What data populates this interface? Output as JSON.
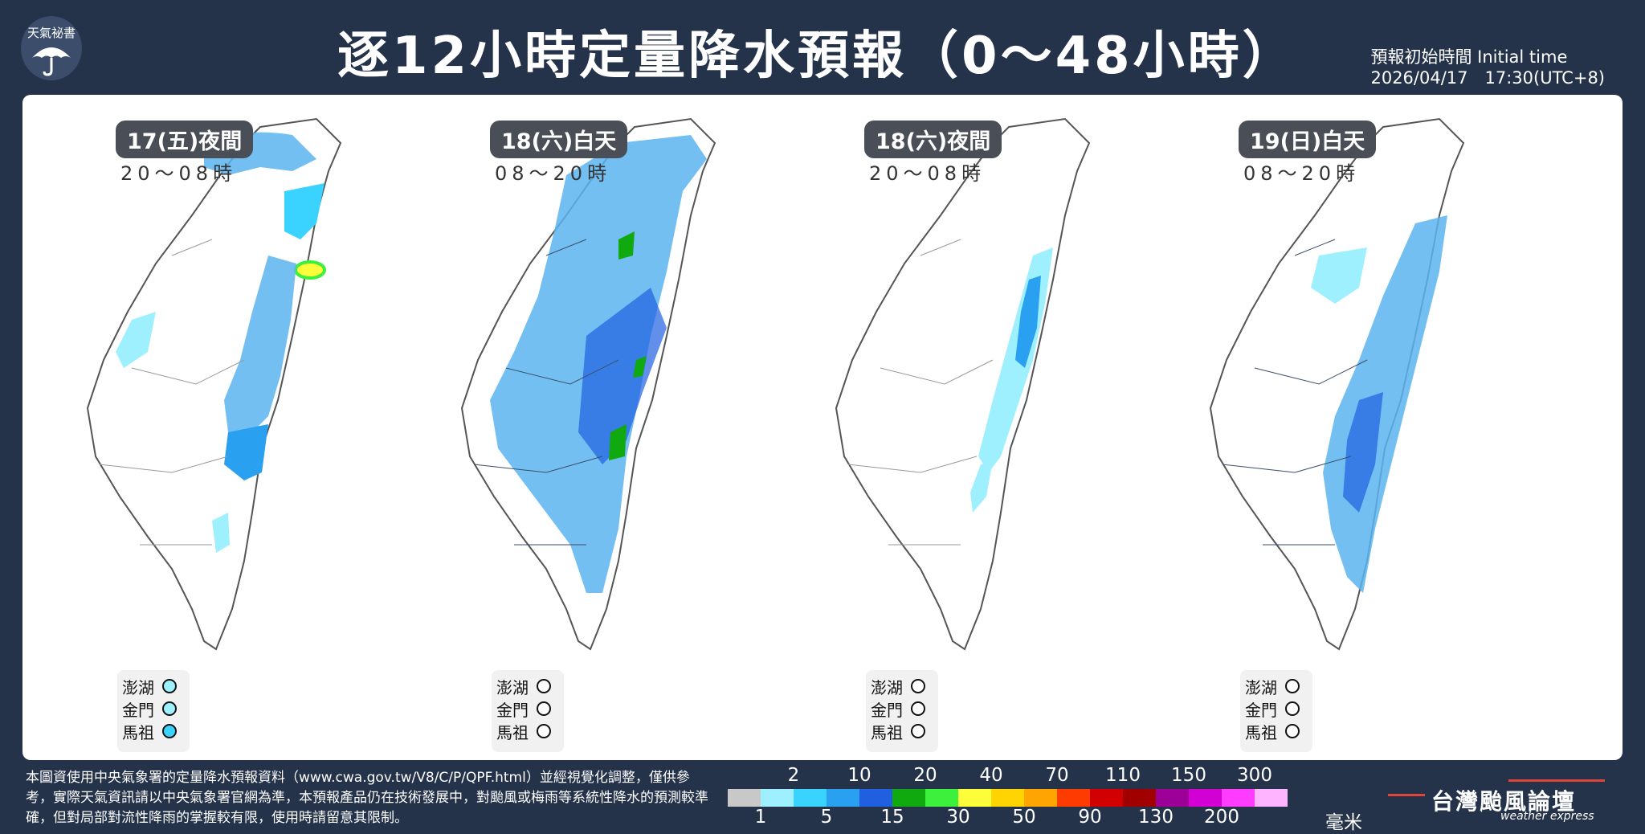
{
  "header": {
    "logo_text": "天氣祕書",
    "title": "逐12小時定量降水預報（0～48小時）",
    "init_label": "預報初始時間 Initial time",
    "init_value": "2026/04/17　17:30(UTC+8)"
  },
  "panels": [
    {
      "day": "17(五)夜間",
      "hours": "20～08時",
      "islands": [
        {
          "name": "澎湖",
          "level": "light"
        },
        {
          "name": "金門",
          "level": "light"
        },
        {
          "name": "馬祖",
          "level": "medium"
        }
      ]
    },
    {
      "day": "18(六)白天",
      "hours": "08～20時",
      "islands": [
        {
          "name": "澎湖",
          "level": "none"
        },
        {
          "name": "金門",
          "level": "none"
        },
        {
          "name": "馬祖",
          "level": "none"
        }
      ]
    },
    {
      "day": "18(六)夜間",
      "hours": "20～08時",
      "islands": [
        {
          "name": "澎湖",
          "level": "none"
        },
        {
          "name": "金門",
          "level": "none"
        },
        {
          "name": "馬祖",
          "level": "none"
        }
      ]
    },
    {
      "day": "19(日)白天",
      "hours": "08～20時",
      "islands": [
        {
          "name": "澎湖",
          "level": "none"
        },
        {
          "name": "金門",
          "level": "none"
        },
        {
          "name": "馬祖",
          "level": "none"
        }
      ]
    }
  ],
  "footer": {
    "note": "本圖資使用中央氣象署的定量降水預報資料（www.cwa.gov.tw/V8/C/P/QPF.html）並經視覺化調整，僅供參考，實際天氣資訊請以中央氣象署官網為準，本預報產品仍在技術發展中，對颱風或梅雨等系統性降水的預測較準確，但對局部對流性降雨的掌握較有限，使用時請留意其限制。",
    "brand_name": "台灣颱風論壇",
    "brand_sub": "weather express"
  },
  "legend": {
    "top_labels": [
      "2",
      "10",
      "20",
      "40",
      "70",
      "110",
      "150",
      "300"
    ],
    "bottom_labels": [
      "1",
      "5",
      "15",
      "30",
      "50",
      "90",
      "130",
      "200"
    ],
    "unit": "毫米",
    "colors": [
      "#c8c8c8",
      "#9ff0ff",
      "#3ad2ff",
      "#2aa0f0",
      "#2060e0",
      "#10aa10",
      "#3cf03c",
      "#fffe3a",
      "#ffd400",
      "#ffa400",
      "#ff3c00",
      "#d20000",
      "#a00000",
      "#9c0096",
      "#d200d2",
      "#ff3cff",
      "#ffb4ff"
    ],
    "level_colors": {
      "none": "#ffffff",
      "light": "#9ff0ff",
      "medium": "#3ad2ff"
    }
  }
}
